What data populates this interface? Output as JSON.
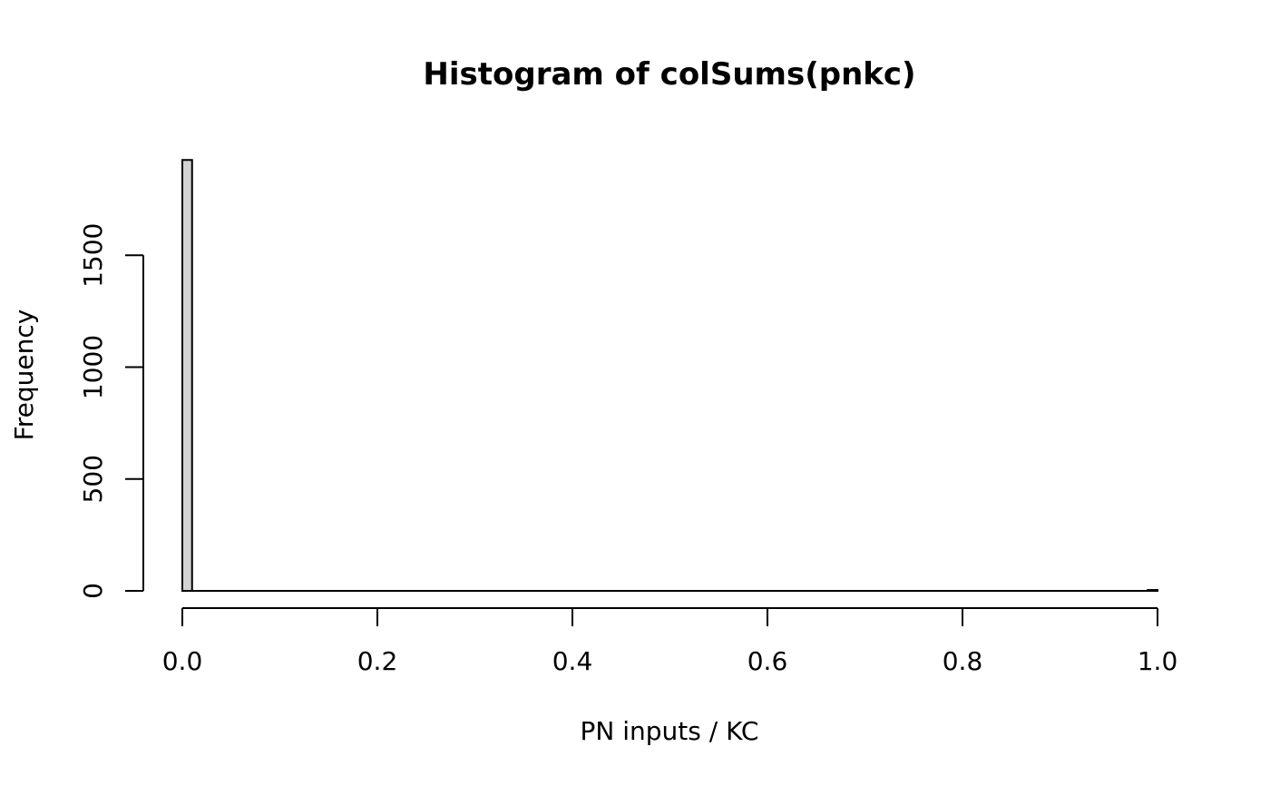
{
  "chart_data": {
    "type": "bar",
    "title": "Histogram of colSums(pnkc)",
    "xlabel": "PN inputs / KC",
    "ylabel": "Frequency",
    "xlim": [
      0,
      1
    ],
    "ylim": [
      0,
      1920
    ],
    "x_ticks": [
      "0.0",
      "0.2",
      "0.4",
      "0.6",
      "0.8",
      "1.0"
    ],
    "y_ticks": [
      "0",
      "500",
      "1000",
      "1500"
    ],
    "bin_width": 0.01,
    "bins": [
      {
        "start": 0.0,
        "end": 0.01,
        "count": 1926
      },
      {
        "start": 0.99,
        "end": 1.0,
        "count": 4
      }
    ],
    "bar_fill": "#d3d3d3",
    "bar_stroke": "#000000",
    "grid": false
  }
}
